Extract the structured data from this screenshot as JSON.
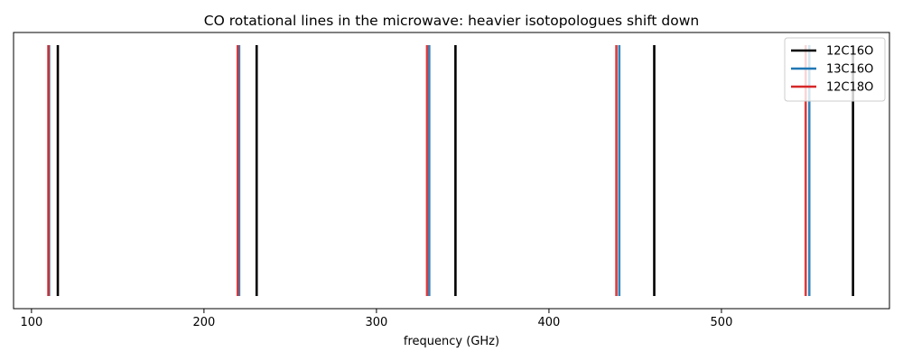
{
  "chart_data": {
    "type": "line",
    "title": "CO rotational lines in the microwave: heavier isotopologues shift down",
    "xlabel": "frequency (GHz)",
    "ylabel": "",
    "xlim": [
      89.6,
      597.4
    ],
    "xticks": [
      100,
      200,
      300,
      400,
      500
    ],
    "yaxis_visible": false,
    "grid": false,
    "legend_position": "top-right",
    "series": [
      {
        "name": "12C16O",
        "color": "#000000",
        "x": [
          115.27,
          230.54,
          345.8,
          461.04,
          576.27
        ]
      },
      {
        "name": "13C16O",
        "color": "#1f77b4",
        "x": [
          110.2,
          220.4,
          330.59,
          440.77,
          550.93
        ]
      },
      {
        "name": "12C18O",
        "color": "#d62728",
        "x": [
          109.78,
          219.56,
          329.33,
          439.09,
          548.83
        ]
      }
    ]
  }
}
